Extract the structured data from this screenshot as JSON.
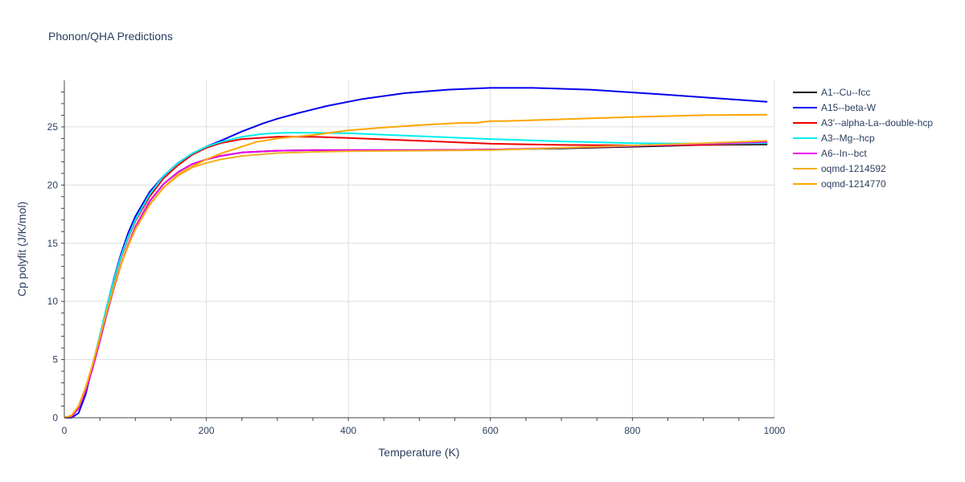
{
  "chart_data": {
    "type": "line",
    "title": "Phonon/QHA Predictions",
    "xlabel": "Temperature (K)",
    "ylabel": "Cp polyfit (J/K/mol)",
    "xlim": [
      0,
      1000
    ],
    "ylim": [
      0,
      29
    ],
    "x_ticks": [
      0,
      200,
      400,
      600,
      800,
      1000
    ],
    "y_ticks": [
      0,
      5,
      10,
      15,
      20,
      25
    ],
    "grid": true,
    "legend_position": "right",
    "series": [
      {
        "name": "A1--Cu--fcc",
        "color": "#000000",
        "points": [
          [
            0,
            0
          ],
          [
            10,
            0.1
          ],
          [
            20,
            0.8
          ],
          [
            30,
            2.3
          ],
          [
            40,
            4.3
          ],
          [
            50,
            6.6
          ],
          [
            60,
            9.0
          ],
          [
            70,
            11.2
          ],
          [
            80,
            13.2
          ],
          [
            90,
            14.9
          ],
          [
            100,
            16.4
          ],
          [
            120,
            18.6
          ],
          [
            140,
            20.1
          ],
          [
            160,
            21.1
          ],
          [
            180,
            21.8
          ],
          [
            200,
            22.2
          ],
          [
            220,
            22.5
          ],
          [
            250,
            22.8
          ],
          [
            300,
            22.95
          ],
          [
            350,
            23.0
          ],
          [
            400,
            23.0
          ],
          [
            500,
            23.0
          ],
          [
            600,
            23.05
          ],
          [
            700,
            23.15
          ],
          [
            800,
            23.3
          ],
          [
            900,
            23.45
          ],
          [
            990,
            23.5
          ]
        ]
      },
      {
        "name": "A15--beta-W",
        "color": "#0000ee",
        "points": [
          [
            0,
            0
          ],
          [
            10,
            0
          ],
          [
            20,
            0.4
          ],
          [
            30,
            2.0
          ],
          [
            40,
            4.5
          ],
          [
            50,
            7.0
          ],
          [
            60,
            9.6
          ],
          [
            70,
            12.0
          ],
          [
            80,
            14.1
          ],
          [
            90,
            15.9
          ],
          [
            100,
            17.3
          ],
          [
            120,
            19.4
          ],
          [
            140,
            20.8
          ],
          [
            160,
            21.9
          ],
          [
            180,
            22.7
          ],
          [
            200,
            23.3
          ],
          [
            220,
            23.8
          ],
          [
            250,
            24.6
          ],
          [
            280,
            25.3
          ],
          [
            300,
            25.7
          ],
          [
            330,
            26.2
          ],
          [
            370,
            26.8
          ],
          [
            420,
            27.4
          ],
          [
            480,
            27.9
          ],
          [
            540,
            28.2
          ],
          [
            600,
            28.35
          ],
          [
            660,
            28.35
          ],
          [
            740,
            28.2
          ],
          [
            840,
            27.8
          ],
          [
            920,
            27.45
          ],
          [
            990,
            27.15
          ]
        ]
      },
      {
        "name": "A3'--alpha-La--double-hcp",
        "color": "#ee0000",
        "points": [
          [
            0,
            0
          ],
          [
            10,
            0.1
          ],
          [
            20,
            0.9
          ],
          [
            30,
            2.4
          ],
          [
            40,
            4.5
          ],
          [
            50,
            7.0
          ],
          [
            60,
            9.5
          ],
          [
            70,
            11.8
          ],
          [
            80,
            13.8
          ],
          [
            90,
            15.5
          ],
          [
            100,
            16.9
          ],
          [
            120,
            19.0
          ],
          [
            140,
            20.6
          ],
          [
            160,
            21.7
          ],
          [
            180,
            22.6
          ],
          [
            200,
            23.2
          ],
          [
            220,
            23.6
          ],
          [
            250,
            23.95
          ],
          [
            300,
            24.15
          ],
          [
            350,
            24.15
          ],
          [
            400,
            24.05
          ],
          [
            500,
            23.8
          ],
          [
            600,
            23.55
          ],
          [
            700,
            23.45
          ],
          [
            800,
            23.4
          ],
          [
            900,
            23.45
          ],
          [
            990,
            23.6
          ]
        ]
      },
      {
        "name": "A3--Mg--hcp",
        "color": "#00eeee",
        "points": [
          [
            0,
            0
          ],
          [
            10,
            0.1
          ],
          [
            20,
            0.9
          ],
          [
            30,
            2.5
          ],
          [
            40,
            4.6
          ],
          [
            50,
            7.1
          ],
          [
            60,
            9.6
          ],
          [
            70,
            11.9
          ],
          [
            80,
            13.9
          ],
          [
            90,
            15.6
          ],
          [
            100,
            17.0
          ],
          [
            120,
            19.2
          ],
          [
            140,
            20.8
          ],
          [
            160,
            21.9
          ],
          [
            180,
            22.7
          ],
          [
            200,
            23.3
          ],
          [
            220,
            23.7
          ],
          [
            250,
            24.15
          ],
          [
            280,
            24.4
          ],
          [
            310,
            24.5
          ],
          [
            350,
            24.5
          ],
          [
            400,
            24.45
          ],
          [
            500,
            24.2
          ],
          [
            600,
            23.95
          ],
          [
            700,
            23.75
          ],
          [
            800,
            23.6
          ],
          [
            900,
            23.55
          ],
          [
            990,
            23.6
          ]
        ]
      },
      {
        "name": "A6--In--bct",
        "color": "#ee00ee",
        "points": [
          [
            0,
            0
          ],
          [
            10,
            0.1
          ],
          [
            20,
            0.8
          ],
          [
            30,
            2.3
          ],
          [
            40,
            4.3
          ],
          [
            50,
            6.6
          ],
          [
            60,
            9.0
          ],
          [
            70,
            11.2
          ],
          [
            80,
            13.2
          ],
          [
            90,
            14.9
          ],
          [
            100,
            16.4
          ],
          [
            120,
            18.6
          ],
          [
            140,
            20.1
          ],
          [
            160,
            21.1
          ],
          [
            180,
            21.8
          ],
          [
            200,
            22.2
          ],
          [
            220,
            22.5
          ],
          [
            250,
            22.8
          ],
          [
            300,
            22.95
          ],
          [
            350,
            23.0
          ],
          [
            400,
            23.0
          ],
          [
            500,
            23.0
          ],
          [
            600,
            23.05
          ],
          [
            700,
            23.2
          ],
          [
            800,
            23.35
          ],
          [
            900,
            23.55
          ],
          [
            990,
            23.7
          ]
        ]
      },
      {
        "name": "oqmd-1214592",
        "color": "#f0b020",
        "points": [
          [
            0,
            0
          ],
          [
            10,
            0.2
          ],
          [
            20,
            1.0
          ],
          [
            30,
            2.6
          ],
          [
            40,
            4.6
          ],
          [
            50,
            6.9
          ],
          [
            60,
            9.2
          ],
          [
            70,
            11.3
          ],
          [
            80,
            13.2
          ],
          [
            90,
            14.8
          ],
          [
            100,
            16.2
          ],
          [
            120,
            18.3
          ],
          [
            140,
            19.8
          ],
          [
            160,
            20.8
          ],
          [
            180,
            21.5
          ],
          [
            200,
            21.9
          ],
          [
            220,
            22.2
          ],
          [
            250,
            22.5
          ],
          [
            300,
            22.75
          ],
          [
            350,
            22.85
          ],
          [
            400,
            22.9
          ],
          [
            500,
            22.95
          ],
          [
            600,
            23.0
          ],
          [
            700,
            23.2
          ],
          [
            800,
            23.4
          ],
          [
            900,
            23.6
          ],
          [
            990,
            23.8
          ]
        ]
      },
      {
        "name": "oqmd-1214770",
        "color": "#ffa500",
        "points": [
          [
            0,
            0
          ],
          [
            10,
            0.2
          ],
          [
            20,
            1.0
          ],
          [
            30,
            2.6
          ],
          [
            40,
            4.6
          ],
          [
            50,
            6.9
          ],
          [
            60,
            9.2
          ],
          [
            70,
            11.3
          ],
          [
            80,
            13.2
          ],
          [
            90,
            14.8
          ],
          [
            100,
            16.2
          ],
          [
            120,
            18.3
          ],
          [
            140,
            19.8
          ],
          [
            160,
            20.9
          ],
          [
            180,
            21.6
          ],
          [
            200,
            22.2
          ],
          [
            220,
            22.7
          ],
          [
            250,
            23.3
          ],
          [
            270,
            23.7
          ],
          [
            300,
            24.0
          ],
          [
            350,
            24.3
          ],
          [
            400,
            24.7
          ],
          [
            450,
            24.95
          ],
          [
            500,
            25.15
          ],
          [
            560,
            25.35
          ],
          [
            580,
            25.35
          ],
          [
            600,
            25.5
          ],
          [
            620,
            25.5
          ],
          [
            700,
            25.65
          ],
          [
            800,
            25.85
          ],
          [
            900,
            26.0
          ],
          [
            990,
            26.05
          ]
        ]
      }
    ]
  }
}
